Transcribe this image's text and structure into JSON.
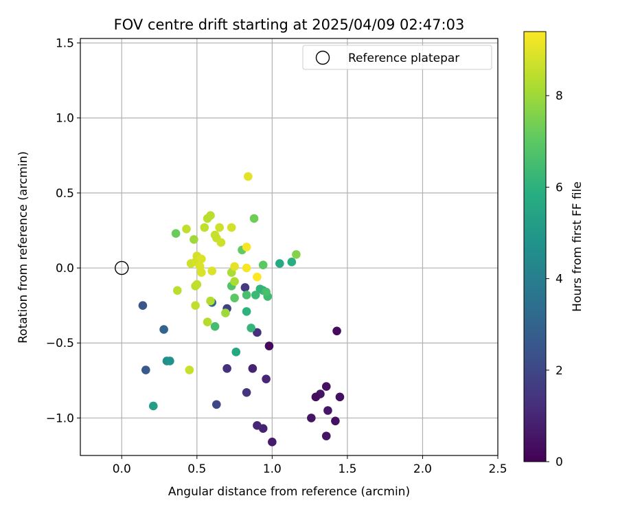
{
  "chart_data": {
    "type": "scatter",
    "title": "FOV centre drift starting at 2025/04/09 02:47:03",
    "xlabel": "Angular distance from reference (arcmin)",
    "ylabel": "Rotation from reference (arcmin)",
    "xlim": [
      -0.275,
      2.5
    ],
    "ylim": [
      -1.25,
      1.53
    ],
    "xticks": [
      0.0,
      0.5,
      1.0,
      1.5,
      2.0,
      2.5
    ],
    "xtick_labels": [
      "0.0",
      "0.5",
      "1.0",
      "1.5",
      "2.0",
      "2.5"
    ],
    "yticks": [
      -1.0,
      -0.5,
      0.0,
      0.5,
      1.0,
      1.5
    ],
    "ytick_labels": [
      "−1.0",
      "−0.5",
      "0.0",
      "0.5",
      "1.0",
      "1.5"
    ],
    "grid": true,
    "legend_position": "upper-right",
    "colormap": "viridis",
    "colorbar": {
      "label": "Hours from first FF file",
      "range": [
        0,
        9.4
      ],
      "ticks": [
        0,
        2,
        4,
        6,
        8
      ],
      "tick_labels": [
        "0",
        "2",
        "4",
        "6",
        "8"
      ]
    },
    "reference": {
      "name": "Reference platepar",
      "x": 0.0,
      "y": 0.0
    },
    "points": [
      {
        "x": 1.43,
        "y": -0.42,
        "hours": 0.3
      },
      {
        "x": 0.98,
        "y": -0.52,
        "hours": 0.2
      },
      {
        "x": 1.36,
        "y": -0.79,
        "hours": 0.4
      },
      {
        "x": 1.32,
        "y": -0.84,
        "hours": 0.5
      },
      {
        "x": 1.29,
        "y": -0.86,
        "hours": 0.3
      },
      {
        "x": 1.45,
        "y": -0.86,
        "hours": 0.4
      },
      {
        "x": 1.37,
        "y": -0.95,
        "hours": 0.6
      },
      {
        "x": 1.26,
        "y": -1.0,
        "hours": 0.5
      },
      {
        "x": 1.42,
        "y": -1.02,
        "hours": 0.4
      },
      {
        "x": 1.36,
        "y": -1.12,
        "hours": 0.5
      },
      {
        "x": 1.0,
        "y": -1.16,
        "hours": 0.7
      },
      {
        "x": 0.94,
        "y": -1.07,
        "hours": 0.9
      },
      {
        "x": 0.9,
        "y": -1.05,
        "hours": 1.0
      },
      {
        "x": 0.96,
        "y": -0.74,
        "hours": 1.0
      },
      {
        "x": 0.87,
        "y": -0.67,
        "hours": 0.9
      },
      {
        "x": 0.9,
        "y": -0.43,
        "hours": 1.3
      },
      {
        "x": 0.7,
        "y": -0.67,
        "hours": 1.3
      },
      {
        "x": 0.83,
        "y": -0.83,
        "hours": 1.4
      },
      {
        "x": 0.63,
        "y": -0.91,
        "hours": 2.0
      },
      {
        "x": 0.82,
        "y": -0.13,
        "hours": 1.6
      },
      {
        "x": 0.7,
        "y": -0.27,
        "hours": 1.8
      },
      {
        "x": 0.14,
        "y": -0.25,
        "hours": 2.5
      },
      {
        "x": 0.16,
        "y": -0.68,
        "hours": 2.6
      },
      {
        "x": 0.28,
        "y": -0.41,
        "hours": 3.0
      },
      {
        "x": 0.6,
        "y": -0.23,
        "hours": 3.2
      },
      {
        "x": 0.3,
        "y": -0.62,
        "hours": 4.6
      },
      {
        "x": 0.32,
        "y": -0.62,
        "hours": 4.8
      },
      {
        "x": 0.21,
        "y": -0.92,
        "hours": 5.2
      },
      {
        "x": 0.76,
        "y": -0.56,
        "hours": 5.6
      },
      {
        "x": 1.05,
        "y": 0.03,
        "hours": 5.7
      },
      {
        "x": 1.13,
        "y": 0.04,
        "hours": 5.9
      },
      {
        "x": 0.94,
        "y": -0.15,
        "hours": 6.0
      },
      {
        "x": 0.92,
        "y": -0.14,
        "hours": 6.1
      },
      {
        "x": 0.83,
        "y": -0.29,
        "hours": 6.0
      },
      {
        "x": 0.86,
        "y": -0.4,
        "hours": 6.2
      },
      {
        "x": 0.62,
        "y": -0.39,
        "hours": 6.5
      },
      {
        "x": 0.89,
        "y": -0.18,
        "hours": 6.3
      },
      {
        "x": 0.97,
        "y": -0.19,
        "hours": 6.4
      },
      {
        "x": 0.96,
        "y": -0.16,
        "hours": 6.6
      },
      {
        "x": 0.83,
        "y": -0.18,
        "hours": 6.6
      },
      {
        "x": 0.73,
        "y": -0.12,
        "hours": 6.8
      },
      {
        "x": 0.75,
        "y": -0.2,
        "hours": 7.0
      },
      {
        "x": 0.94,
        "y": 0.02,
        "hours": 7.0
      },
      {
        "x": 0.8,
        "y": 0.12,
        "hours": 7.1
      },
      {
        "x": 0.36,
        "y": 0.23,
        "hours": 7.2
      },
      {
        "x": 0.88,
        "y": 0.33,
        "hours": 7.3
      },
      {
        "x": 1.16,
        "y": 0.09,
        "hours": 7.6
      },
      {
        "x": 0.48,
        "y": 0.19,
        "hours": 8.0
      },
      {
        "x": 0.69,
        "y": -0.3,
        "hours": 8.0
      },
      {
        "x": 0.73,
        "y": -0.03,
        "hours": 8.2
      },
      {
        "x": 0.75,
        "y": -0.09,
        "hours": 8.2
      },
      {
        "x": 0.59,
        "y": -0.22,
        "hours": 8.3
      },
      {
        "x": 0.57,
        "y": -0.36,
        "hours": 8.3
      },
      {
        "x": 0.37,
        "y": -0.15,
        "hours": 8.4
      },
      {
        "x": 0.49,
        "y": -0.12,
        "hours": 8.4
      },
      {
        "x": 0.5,
        "y": -0.11,
        "hours": 8.5
      },
      {
        "x": 0.49,
        "y": -0.25,
        "hours": 8.5
      },
      {
        "x": 0.45,
        "y": -0.68,
        "hours": 8.6
      },
      {
        "x": 0.43,
        "y": 0.26,
        "hours": 8.5
      },
      {
        "x": 0.55,
        "y": 0.27,
        "hours": 8.5
      },
      {
        "x": 0.57,
        "y": 0.33,
        "hours": 8.4
      },
      {
        "x": 0.59,
        "y": 0.35,
        "hours": 8.4
      },
      {
        "x": 0.62,
        "y": 0.22,
        "hours": 8.6
      },
      {
        "x": 0.63,
        "y": 0.2,
        "hours": 8.6
      },
      {
        "x": 0.65,
        "y": 0.27,
        "hours": 8.7
      },
      {
        "x": 0.66,
        "y": 0.17,
        "hours": 8.7
      },
      {
        "x": 0.73,
        "y": 0.27,
        "hours": 8.8
      },
      {
        "x": 0.46,
        "y": 0.03,
        "hours": 8.7
      },
      {
        "x": 0.49,
        "y": 0.04,
        "hours": 8.8
      },
      {
        "x": 0.5,
        "y": 0.08,
        "hours": 8.8
      },
      {
        "x": 0.52,
        "y": 0.01,
        "hours": 8.9
      },
      {
        "x": 0.53,
        "y": 0.06,
        "hours": 8.9
      },
      {
        "x": 0.53,
        "y": -0.03,
        "hours": 8.9
      },
      {
        "x": 0.6,
        "y": -0.02,
        "hours": 8.9
      },
      {
        "x": 0.75,
        "y": 0.01,
        "hours": 9.0
      },
      {
        "x": 0.84,
        "y": 0.61,
        "hours": 9.0
      },
      {
        "x": 0.83,
        "y": 0.14,
        "hours": 9.3
      },
      {
        "x": 0.83,
        "y": 0.0,
        "hours": 9.3
      },
      {
        "x": 0.9,
        "y": -0.06,
        "hours": 9.4
      }
    ]
  }
}
